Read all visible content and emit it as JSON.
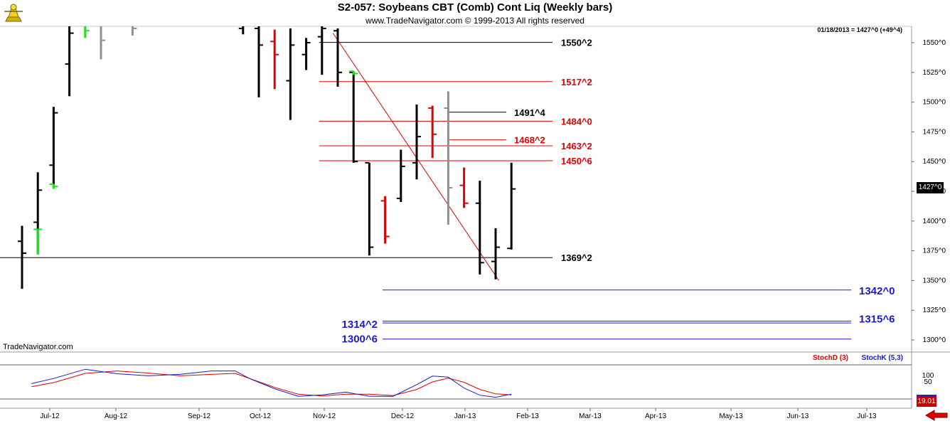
{
  "header": {
    "title": "S2-057:  Soybeans CBT (Comb) Cont Liq  (Weekly bars)",
    "subtitle": "www.TradeNavigator.com © 1999-2013 All rights reserved",
    "readout": "01/18/2013 = 1427^0 (+49^4)",
    "watermark": "TradeNavigator.com",
    "last_price_label": "1427^0",
    "stoch_readout": "19.01"
  },
  "colors": {
    "bar_up": "#000000",
    "bar_down": "#e00000",
    "bar_green": "#22dd22",
    "bar_gray": "#909090",
    "level_black": "#000000",
    "level_red": "#cc0000",
    "level_blue": "#1a1acc",
    "stoch_d": "#cc0000",
    "stoch_k": "#2222cc"
  },
  "icons": {
    "logo": "trade-navigator-logo-icon",
    "menu": "red-left-arrow-icon"
  },
  "chart_data": [
    {
      "type": "ohlc",
      "title": "S2-057:  Soybeans CBT (Comb) Cont Liq  (Weekly bars)",
      "y_axis": {
        "min": 1290,
        "max": 1560,
        "ticks": [
          1550,
          1525,
          1500,
          1475,
          1450,
          1425,
          1400,
          1375,
          1350,
          1325,
          1300
        ],
        "tick_labels": [
          "1550^0",
          "1525^0",
          "1500^0",
          "1475^0",
          "1450^0",
          "1425^0",
          "1400^0",
          "1375^0",
          "1350^0",
          "1325^0",
          "1300^0"
        ]
      },
      "x_axis": {
        "tick_labels": [
          "Jul-12",
          "Aug-12",
          "Sep-12",
          "Oct-12",
          "Nov-12",
          "Dec-12",
          "Jan-13",
          "Feb-13",
          "Mar-13",
          "Apr-13",
          "May-13",
          "Jun-13",
          "Jul-13"
        ]
      },
      "bars": [
        {
          "i": 0,
          "h": 1396,
          "l": 1343,
          "o": 1383,
          "c": 1373,
          "color": "black"
        },
        {
          "i": 1,
          "h": 1441,
          "l": 1372,
          "o": 1399,
          "c": 1426,
          "color": "black"
        },
        {
          "i": 1,
          "h": 1393,
          "l": 1372,
          "o": 1393,
          "c": 1393,
          "color": "green"
        },
        {
          "i": 2,
          "h": 1496,
          "l": 1431,
          "o": 1447,
          "c": 1491,
          "color": "black"
        },
        {
          "i": 2,
          "h": 1431,
          "l": 1427,
          "o": 1431,
          "c": 1429,
          "color": "green"
        },
        {
          "i": 3,
          "h": 1570,
          "l": 1505,
          "o": 1532,
          "c": 1558,
          "color": "black"
        },
        {
          "i": 4,
          "h": 1570,
          "l": 1554,
          "o": 1565,
          "c": 1560,
          "color": "green"
        },
        {
          "i": 5,
          "h": 1570,
          "l": 1536,
          "o": 1565,
          "c": 1552,
          "color": "gray"
        },
        {
          "i": 7,
          "h": 1570,
          "l": 1556,
          "o": 1565,
          "c": 1562,
          "color": "gray"
        },
        {
          "i": 14,
          "h": 1570,
          "l": 1557,
          "o": 1562,
          "c": 1567,
          "color": "black"
        },
        {
          "i": 15,
          "h": 1570,
          "l": 1504,
          "o": 1562,
          "c": 1548,
          "color": "black"
        },
        {
          "i": 16,
          "h": 1561,
          "l": 1511,
          "o": 1551,
          "c": 1540,
          "color": "red"
        },
        {
          "i": 17,
          "h": 1562,
          "l": 1485,
          "o": 1518,
          "c": 1548,
          "color": "black"
        },
        {
          "i": 18,
          "h": 1554,
          "l": 1527,
          "o": 1540,
          "c": 1550,
          "color": "black"
        },
        {
          "i": 19,
          "h": 1570,
          "l": 1523,
          "o": 1555,
          "c": 1562,
          "color": "black"
        },
        {
          "i": 20,
          "h": 1562,
          "l": 1513,
          "o": 1560,
          "c": 1525,
          "color": "black"
        },
        {
          "i": 21,
          "h": 1526,
          "l": 1449,
          "o": 1525,
          "c": 1450,
          "color": "black"
        },
        {
          "i": 21,
          "h": 1526,
          "l": 1523,
          "o": 1526,
          "c": 1524,
          "color": "green"
        },
        {
          "i": 22,
          "h": 1449,
          "l": 1371,
          "o": 1449,
          "c": 1378,
          "color": "black"
        },
        {
          "i": 23,
          "h": 1421,
          "l": 1381,
          "o": 1417,
          "c": 1387,
          "color": "red"
        },
        {
          "i": 24,
          "h": 1460,
          "l": 1416,
          "o": 1419,
          "c": 1446,
          "color": "black"
        },
        {
          "i": 25,
          "h": 1498,
          "l": 1435,
          "o": 1449,
          "c": 1471,
          "color": "black"
        },
        {
          "i": 26,
          "h": 1497,
          "l": 1453,
          "o": 1495,
          "c": 1473,
          "color": "red"
        },
        {
          "i": 27,
          "h": 1509,
          "l": 1397,
          "o": 1495,
          "c": 1428,
          "color": "gray"
        },
        {
          "i": 28,
          "h": 1445,
          "l": 1411,
          "o": 1430,
          "c": 1415,
          "color": "red"
        },
        {
          "i": 29,
          "h": 1434,
          "l": 1355,
          "o": 1415,
          "c": 1365,
          "color": "black"
        },
        {
          "i": 30,
          "h": 1394,
          "l": 1351,
          "o": 1366,
          "c": 1378,
          "color": "black"
        },
        {
          "i": 31,
          "h": 1449,
          "l": 1376,
          "o": 1377,
          "c": 1427,
          "color": "black"
        }
      ],
      "levels": [
        {
          "value": 1550.25,
          "label": "1550^2",
          "color": "black",
          "from_bar": 19
        },
        {
          "value": 1517.25,
          "label": "1517^2",
          "color": "red",
          "from_bar": 19
        },
        {
          "value": 1491.5,
          "label": "1491^4",
          "color": "black",
          "from_bar": 27
        },
        {
          "value": 1484.0,
          "label": "1484^0",
          "color": "red",
          "from_bar": 19
        },
        {
          "value": 1468.25,
          "label": "1468^2",
          "color": "red",
          "from_bar": 27
        },
        {
          "value": 1463.25,
          "label": "1463^2",
          "color": "red",
          "from_bar": 19
        },
        {
          "value": 1450.75,
          "label": "1450^6",
          "color": "red",
          "from_bar": 19
        },
        {
          "value": 1369.25,
          "label": "1369^2",
          "color": "black",
          "from_bar": -1
        },
        {
          "value": 1342.0,
          "label": "1342^0",
          "color": "blue",
          "from_bar": 24
        },
        {
          "value": 1315.75,
          "label": "1315^6",
          "color": "blue",
          "from_bar": 24
        },
        {
          "value": 1314.25,
          "label": "1314^2",
          "color": "blue",
          "from_bar": 24
        },
        {
          "value": 1300.75,
          "label": "1300^6",
          "color": "blue",
          "from_bar": 24
        }
      ],
      "trendline": {
        "from": {
          "i": 19.7,
          "value": 1558
        },
        "to": {
          "i": 30.2,
          "value": 1350
        },
        "color": "red"
      }
    },
    {
      "type": "line",
      "title": "",
      "y_axis": {
        "min": 0,
        "max": 100,
        "ticks": [
          100,
          50
        ],
        "tick_labels": [
          "100",
          "50"
        ],
        "reference_lines": [
          80,
          20
        ]
      },
      "series": [
        {
          "name": "StochD (3)",
          "color": "red",
          "x": [
            0.6,
            2,
            4,
            6,
            8,
            10,
            12,
            13.5,
            16,
            17.5,
            19,
            20.5,
            22,
            23.5,
            25,
            26,
            27,
            28,
            29,
            30,
            31
          ],
          "values": [
            36,
            48,
            75,
            82,
            76,
            68,
            72,
            75,
            34,
            14,
            9,
            14,
            14,
            10,
            28,
            50,
            61,
            49,
            28,
            15,
            12
          ]
        },
        {
          "name": "StochK (5,3)",
          "color": "blue",
          "x": [
            0.6,
            2,
            4,
            6,
            8,
            10,
            12,
            13.5,
            14.5,
            16,
            17.5,
            19,
            20.5,
            22,
            23.5,
            25,
            26,
            27,
            28,
            29,
            30,
            31
          ],
          "values": [
            45,
            60,
            87,
            74,
            68,
            72,
            82,
            82,
            58,
            30,
            8,
            12,
            20,
            8,
            8,
            42,
            67,
            64,
            32,
            11,
            5,
            14
          ]
        }
      ]
    }
  ]
}
